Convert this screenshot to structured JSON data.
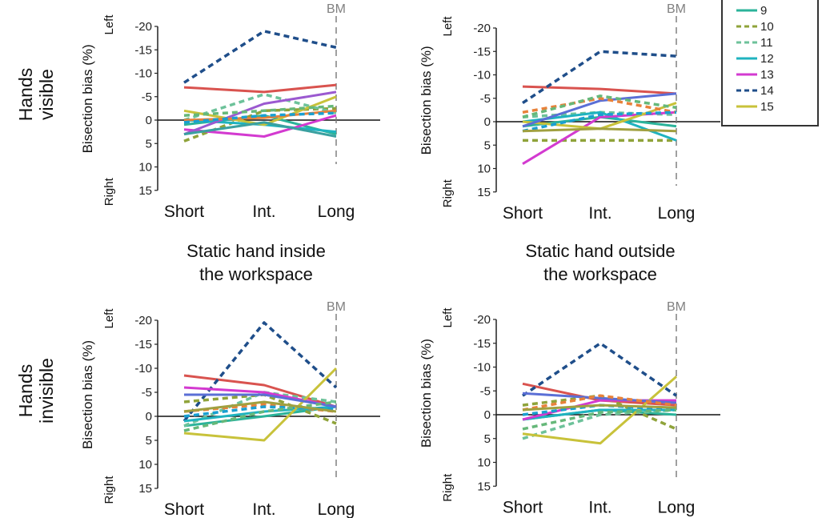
{
  "figure": {
    "row_labels": [
      {
        "lines": [
          "Hands",
          "visible"
        ]
      },
      {
        "lines": [
          "Hands",
          "invisible"
        ]
      }
    ],
    "column_labels": [
      {
        "lines": [
          "Static hand inside",
          "the workspace"
        ]
      },
      {
        "lines": [
          "Static hand outside",
          "the workspace"
        ]
      }
    ],
    "legend": {
      "items": [
        {
          "label": "9",
          "color": "#2bb39a",
          "dashed": false
        },
        {
          "label": "10",
          "color": "#8fa33a",
          "dashed": true
        },
        {
          "label": "11",
          "color": "#6dc29a",
          "dashed": true
        },
        {
          "label": "12",
          "color": "#1fb3bf",
          "dashed": false
        },
        {
          "label": "13",
          "color": "#d33ad0",
          "dashed": false
        },
        {
          "label": "14",
          "color": "#1f4e8a",
          "dashed": true
        },
        {
          "label": "15",
          "color": "#c8c23a",
          "dashed": false
        }
      ]
    }
  },
  "chart_data": [
    {
      "type": "line",
      "panel": "hands-visible-inside",
      "ylabel": "Bisection bias (%)",
      "y_left_label": "Left",
      "y_right_label": "Right",
      "marker_label": "BM",
      "categories": [
        "Short",
        "Int.",
        "Long"
      ],
      "yticks": [
        "-20",
        "-15",
        "-10",
        "-5",
        "0",
        "5",
        "10",
        "15"
      ],
      "ylim": [
        -20,
        15
      ],
      "y_inverted": true,
      "series": [
        {
          "color": "#d9534f",
          "dashed": false,
          "values": [
            -7,
            -6,
            -7.5
          ]
        },
        {
          "color": "#1f4e8a",
          "dashed": true,
          "name": "14",
          "values": [
            -8,
            -19,
            -15.5
          ]
        },
        {
          "color": "#2bb39a",
          "dashed": false,
          "name": "9",
          "values": [
            1,
            -1,
            3
          ]
        },
        {
          "color": "#8fa33a",
          "dashed": true,
          "name": "10",
          "values": [
            4.5,
            -2,
            -2.5
          ]
        },
        {
          "color": "#6dc29a",
          "dashed": true,
          "name": "11",
          "values": [
            0,
            -5.5,
            -1.5
          ]
        },
        {
          "color": "#1fb3bf",
          "dashed": false,
          "name": "12",
          "values": [
            0,
            1,
            2.5
          ]
        },
        {
          "color": "#d33ad0",
          "dashed": false,
          "name": "13",
          "values": [
            2,
            3.5,
            -1
          ]
        },
        {
          "color": "#c8c23a",
          "dashed": false,
          "name": "15",
          "values": [
            -2,
            1,
            -5
          ]
        },
        {
          "color": "#9b59d0",
          "dashed": false,
          "values": [
            3,
            -3.5,
            -6
          ]
        },
        {
          "color": "#e8813a",
          "dashed": false,
          "values": [
            0,
            -0.5,
            -2
          ]
        },
        {
          "color": "#1a9fd1",
          "dashed": true,
          "values": [
            0.5,
            -1,
            -1.5
          ]
        },
        {
          "color": "#66b87a",
          "dashed": true,
          "values": [
            -1,
            -2,
            -3
          ]
        },
        {
          "color": "#3aa0a0",
          "dashed": false,
          "values": [
            3,
            0.5,
            3.5
          ]
        }
      ]
    },
    {
      "type": "line",
      "panel": "hands-visible-outside",
      "ylabel": "Bisection bias (%)",
      "y_left_label": "Left",
      "y_right_label": "Right",
      "marker_label": "BM",
      "categories": [
        "Short",
        "Int.",
        "Long"
      ],
      "yticks": [
        "-20",
        "-15",
        "-10",
        "-5",
        "0",
        "5",
        "10",
        "15"
      ],
      "ylim": [
        -20,
        15
      ],
      "y_inverted": true,
      "series": [
        {
          "color": "#d9534f",
          "dashed": false,
          "values": [
            -7.5,
            -7,
            -6
          ]
        },
        {
          "color": "#1f4e8a",
          "dashed": true,
          "name": "14",
          "values": [
            -4,
            -15,
            -14
          ]
        },
        {
          "color": "#2bb39a",
          "dashed": false,
          "name": "9",
          "values": [
            1,
            -1,
            1
          ]
        },
        {
          "color": "#8fa33a",
          "dashed": true,
          "name": "10",
          "values": [
            4,
            4,
            4
          ]
        },
        {
          "color": "#6dc29a",
          "dashed": true,
          "name": "11",
          "values": [
            -1,
            -2,
            -1.5
          ]
        },
        {
          "color": "#1fb3bf",
          "dashed": false,
          "name": "12",
          "values": [
            0,
            -2,
            4
          ]
        },
        {
          "color": "#d33ad0",
          "dashed": false,
          "name": "13",
          "values": [
            9,
            -1,
            -2
          ]
        },
        {
          "color": "#c8c23a",
          "dashed": false,
          "name": "15",
          "values": [
            0,
            1.5,
            -4
          ]
        },
        {
          "color": "#5b6fd6",
          "dashed": false,
          "values": [
            1,
            -4.5,
            -6
          ]
        },
        {
          "color": "#e8813a",
          "dashed": true,
          "values": [
            -2,
            -5,
            -2
          ]
        },
        {
          "color": "#1a9fd1",
          "dashed": true,
          "values": [
            2,
            -1.5,
            -2
          ]
        },
        {
          "color": "#66b87a",
          "dashed": true,
          "values": [
            -1,
            -5.5,
            -3
          ]
        },
        {
          "color": "#a0a040",
          "dashed": false,
          "values": [
            2,
            1.5,
            2
          ]
        }
      ]
    },
    {
      "type": "line",
      "panel": "hands-invisible-inside",
      "ylabel": "Bisection bias (%)",
      "y_left_label": "Left",
      "y_right_label": "Right",
      "marker_label": "BM",
      "categories": [
        "Short",
        "Int.",
        "Long"
      ],
      "yticks": [
        "-20",
        "-15",
        "-10",
        "-5",
        "0",
        "5",
        "10",
        "15"
      ],
      "ylim": [
        -20,
        15
      ],
      "y_inverted": true,
      "series": [
        {
          "color": "#d9534f",
          "dashed": false,
          "values": [
            -8.5,
            -6.5,
            -2
          ]
        },
        {
          "color": "#1f4e8a",
          "dashed": true,
          "name": "14",
          "values": [
            1,
            -19.5,
            -6
          ]
        },
        {
          "color": "#2bb39a",
          "dashed": false,
          "name": "9",
          "values": [
            2,
            0,
            -2
          ]
        },
        {
          "color": "#8fa33a",
          "dashed": true,
          "name": "10",
          "values": [
            -3,
            -4.5,
            1.5
          ]
        },
        {
          "color": "#6dc29a",
          "dashed": true,
          "name": "11",
          "values": [
            2,
            -5,
            -3
          ]
        },
        {
          "color": "#1fb3bf",
          "dashed": false,
          "name": "12",
          "values": [
            1,
            -1,
            -2
          ]
        },
        {
          "color": "#d33ad0",
          "dashed": false,
          "name": "13",
          "values": [
            -6,
            -5,
            -2
          ]
        },
        {
          "color": "#c8c23a",
          "dashed": false,
          "name": "15",
          "values": [
            3.5,
            5,
            -10
          ]
        },
        {
          "color": "#5b6fd6",
          "dashed": false,
          "values": [
            -4.5,
            -4.5,
            -2
          ]
        },
        {
          "color": "#e8813a",
          "dashed": true,
          "values": [
            -1,
            -2.5,
            -1
          ]
        },
        {
          "color": "#1a9fd1",
          "dashed": true,
          "values": [
            0,
            -2,
            -1.5
          ]
        },
        {
          "color": "#66b87a",
          "dashed": true,
          "values": [
            3,
            -1,
            -3
          ]
        },
        {
          "color": "#a0a040",
          "dashed": false,
          "values": [
            -1,
            -3,
            -1
          ]
        }
      ]
    },
    {
      "type": "line",
      "panel": "hands-invisible-outside",
      "ylabel": "Bisection bias (%)",
      "y_left_label": "Left",
      "y_right_label": "Right",
      "marker_label": "BM",
      "categories": [
        "Short",
        "Int.",
        "Long"
      ],
      "yticks": [
        "-20",
        "-15",
        "-10",
        "-5",
        "0",
        "5",
        "10",
        "15"
      ],
      "ylim": [
        -20,
        15
      ],
      "y_inverted": true,
      "series": [
        {
          "color": "#d9534f",
          "dashed": false,
          "values": [
            -6.5,
            -3,
            -2
          ]
        },
        {
          "color": "#1f4e8a",
          "dashed": true,
          "name": "14",
          "values": [
            -4,
            -15,
            -4
          ]
        },
        {
          "color": "#2bb39a",
          "dashed": false,
          "name": "9",
          "values": [
            1,
            -1,
            0
          ]
        },
        {
          "color": "#8fa33a",
          "dashed": true,
          "name": "10",
          "values": [
            -2,
            -4,
            3
          ]
        },
        {
          "color": "#6dc29a",
          "dashed": true,
          "name": "11",
          "values": [
            5,
            0,
            -1
          ]
        },
        {
          "color": "#1fb3bf",
          "dashed": false,
          "name": "12",
          "values": [
            1,
            -1,
            -1
          ]
        },
        {
          "color": "#d33ad0",
          "dashed": false,
          "name": "13",
          "values": [
            1,
            -3,
            -3
          ]
        },
        {
          "color": "#c8c23a",
          "dashed": false,
          "name": "15",
          "values": [
            4,
            6,
            -8
          ]
        },
        {
          "color": "#5b6fd6",
          "dashed": false,
          "values": [
            -4.5,
            -3.5,
            -2.5
          ]
        },
        {
          "color": "#e8813a",
          "dashed": true,
          "values": [
            -1,
            -4,
            -2
          ]
        },
        {
          "color": "#1a9fd1",
          "dashed": true,
          "values": [
            0,
            -2,
            -1
          ]
        },
        {
          "color": "#66b87a",
          "dashed": true,
          "values": [
            3,
            -0.5,
            -1
          ]
        },
        {
          "color": "#a0a040",
          "dashed": false,
          "values": [
            -1,
            -2,
            -1.5
          ]
        }
      ]
    }
  ]
}
